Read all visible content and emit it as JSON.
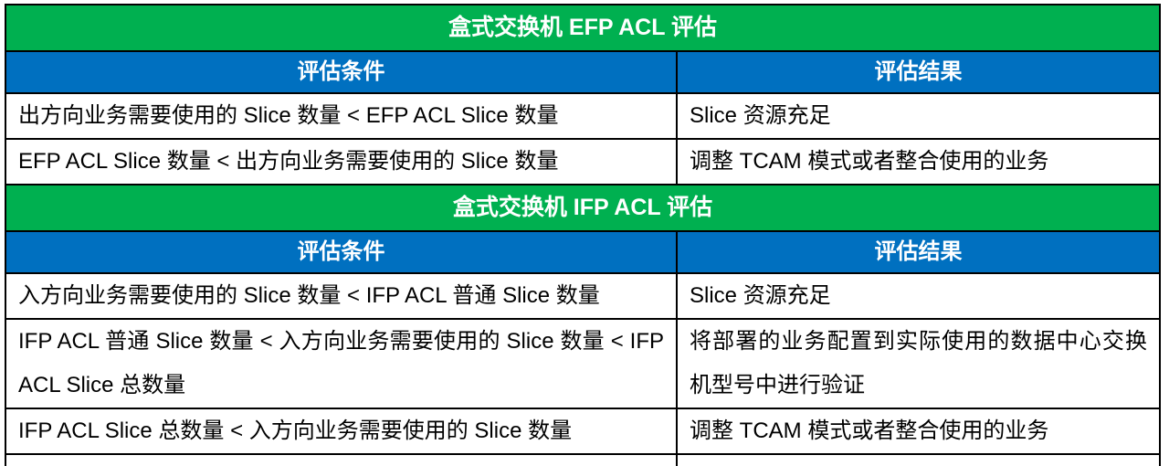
{
  "table": {
    "colors": {
      "section_header_bg": "#00B050",
      "column_header_bg": "#0070C0",
      "header_text": "#FFFFFF",
      "body_text": "#000000",
      "border": "#000000"
    },
    "sections": [
      {
        "title": "盒式交换机 EFP ACL 评估",
        "columns": {
          "condition": "评估条件",
          "result": "评估结果"
        },
        "rows": [
          {
            "condition": "出方向业务需要使用的 Slice 数量 < EFP ACL Slice 数量",
            "result": "Slice 资源充足"
          },
          {
            "condition": "EFP ACL Slice 数量 < 出方向业务需要使用的 Slice 数量",
            "result": "调整 TCAM 模式或者整合使用的业务"
          }
        ]
      },
      {
        "title": "盒式交换机 IFP ACL 评估",
        "columns": {
          "condition": "评估条件",
          "result": "评估结果"
        },
        "rows": [
          {
            "condition": "入方向业务需要使用的 Slice 数量 < IFP ACL 普通 Slice 数量",
            "result": "Slice 资源充足"
          },
          {
            "condition": "IFP ACL 普通 Slice 数量 < 入方向业务需要使用的 Slice 数量 < IFP ACL Slice 总数量",
            "result": "将部署的业务配置到实际使用的数据中心交换机型号中进行验证"
          },
          {
            "condition": "IFP ACL Slice 总数量 < 入方向业务需要使用的 Slice 数量",
            "result": "调整 TCAM 模式或者整合使用的业务"
          }
        ]
      }
    ]
  }
}
